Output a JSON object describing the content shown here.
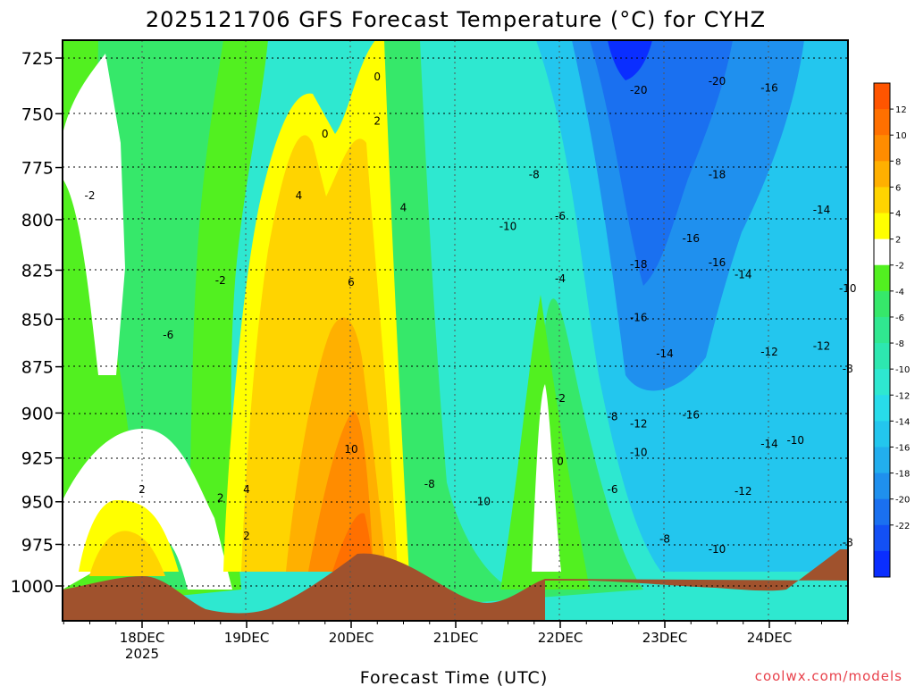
{
  "chart_data": {
    "type": "heatmap",
    "title": "2025121706 GFS Forecast Temperature (°C) for CYHZ",
    "xlabel": "Forecast Time (UTC)",
    "ylabel": "",
    "credit": "coolwx.com/models",
    "y_ticks": [
      "725",
      "750",
      "775",
      "800",
      "825",
      "850",
      "875",
      "900",
      "925",
      "950",
      "975",
      "1000"
    ],
    "y_values": [
      725,
      750,
      775,
      800,
      825,
      850,
      875,
      900,
      925,
      950,
      975,
      1000
    ],
    "x_ticks": [
      "18DEC",
      "19DEC",
      "20DEC",
      "21DEC",
      "22DEC",
      "23DEC",
      "24DEC"
    ],
    "x_subtick_year": "2025",
    "ylim": [
      1015,
      714
    ],
    "colorbar": {
      "levels": [
        -24,
        -22,
        -20,
        -18,
        -16,
        -14,
        -12,
        -10,
        -8,
        -6,
        -4,
        -2,
        0,
        2,
        4,
        6,
        8,
        10,
        12,
        14
      ],
      "labels": [
        "12",
        "10",
        "8",
        "6",
        "4",
        "2",
        "-2",
        "-4",
        "-6",
        "-8",
        "-10",
        "-12",
        "-14",
        "-16",
        "-18",
        "-20",
        "-22"
      ],
      "colors": [
        "#0a2eff",
        "#1350f5",
        "#1a70f0",
        "#1f90ee",
        "#22aeee",
        "#23c6ee",
        "#28dcea",
        "#2ee8d0",
        "#2de8b0",
        "#30e890",
        "#36e86a",
        "#52f020",
        "#ffffff",
        "#ffff00",
        "#ffd400",
        "#ffb000",
        "#ff8c00",
        "#ff7000",
        "#ff5500"
      ]
    },
    "contour_labels": [
      {
        "text": "-2",
        "time": "17DEC12",
        "p": 790
      },
      {
        "text": "-6",
        "time": "18DEC06",
        "p": 860
      },
      {
        "text": "2",
        "time": "18DEC00",
        "p": 945
      },
      {
        "text": "2",
        "time": "18DEC18",
        "p": 950
      },
      {
        "text": "-2",
        "time": "18DEC18",
        "p": 832
      },
      {
        "text": "2",
        "time": "19DEC00",
        "p": 972
      },
      {
        "text": "4",
        "time": "19DEC00",
        "p": 945
      },
      {
        "text": "4",
        "time": "19DEC12",
        "p": 790
      },
      {
        "text": "0",
        "time": "19DEC18",
        "p": 761
      },
      {
        "text": "0",
        "time": "20DEC06",
        "p": 735
      },
      {
        "text": "2",
        "time": "20DEC06",
        "p": 755
      },
      {
        "text": "4",
        "time": "20DEC12",
        "p": 796
      },
      {
        "text": "6",
        "time": "20DEC00",
        "p": 833
      },
      {
        "text": "10",
        "time": "20DEC00",
        "p": 922
      },
      {
        "text": "-8",
        "time": "20DEC18",
        "p": 942
      },
      {
        "text": "-10",
        "time": "21DEC06",
        "p": 952
      },
      {
        "text": "-10",
        "time": "21DEC12",
        "p": 805
      },
      {
        "text": "-8",
        "time": "21DEC18",
        "p": 780
      },
      {
        "text": "-6",
        "time": "22DEC00",
        "p": 800
      },
      {
        "text": "-4",
        "time": "22DEC00",
        "p": 831
      },
      {
        "text": "-2",
        "time": "22DEC00",
        "p": 894
      },
      {
        "text": "0",
        "time": "22DEC00",
        "p": 929
      },
      {
        "text": "-8",
        "time": "22DEC12",
        "p": 904
      },
      {
        "text": "-6",
        "time": "22DEC12",
        "p": 945
      },
      {
        "text": "-10",
        "time": "22DEC18",
        "p": 924
      },
      {
        "text": "-12",
        "time": "22DEC18",
        "p": 908
      },
      {
        "text": "-20",
        "time": "22DEC18",
        "p": 741
      },
      {
        "text": "-18",
        "time": "22DEC18",
        "p": 824
      },
      {
        "text": "-16",
        "time": "22DEC18",
        "p": 851
      },
      {
        "text": "-14",
        "time": "23DEC00",
        "p": 870
      },
      {
        "text": "-8",
        "time": "23DEC00",
        "p": 974
      },
      {
        "text": "-20",
        "time": "23DEC12",
        "p": 737
      },
      {
        "text": "-18",
        "time": "23DEC12",
        "p": 780
      },
      {
        "text": "-16",
        "time": "23DEC06",
        "p": 811
      },
      {
        "text": "-16",
        "time": "23DEC12",
        "p": 823
      },
      {
        "text": "-16",
        "time": "23DEC06",
        "p": 903
      },
      {
        "text": "-10",
        "time": "23DEC12",
        "p": 980
      },
      {
        "text": "-12",
        "time": "23DEC18",
        "p": 946
      },
      {
        "text": "-14",
        "time": "23DEC18",
        "p": 829
      },
      {
        "text": "-12",
        "time": "24DEC00",
        "p": 869
      },
      {
        "text": "-14",
        "time": "24DEC00",
        "p": 919
      },
      {
        "text": "-16",
        "time": "24DEC00",
        "p": 740
      },
      {
        "text": "-10",
        "time": "24DEC06",
        "p": 917
      },
      {
        "text": "-14",
        "time": "24DEC12",
        "p": 797
      },
      {
        "text": "-12",
        "time": "24DEC12",
        "p": 866
      },
      {
        "text": "-10",
        "time": "24DEC18",
        "p": 836
      },
      {
        "text": "-8",
        "time": "24DEC18",
        "p": 878
      },
      {
        "text": "-8",
        "time": "24DEC18",
        "p": 976
      }
    ]
  }
}
